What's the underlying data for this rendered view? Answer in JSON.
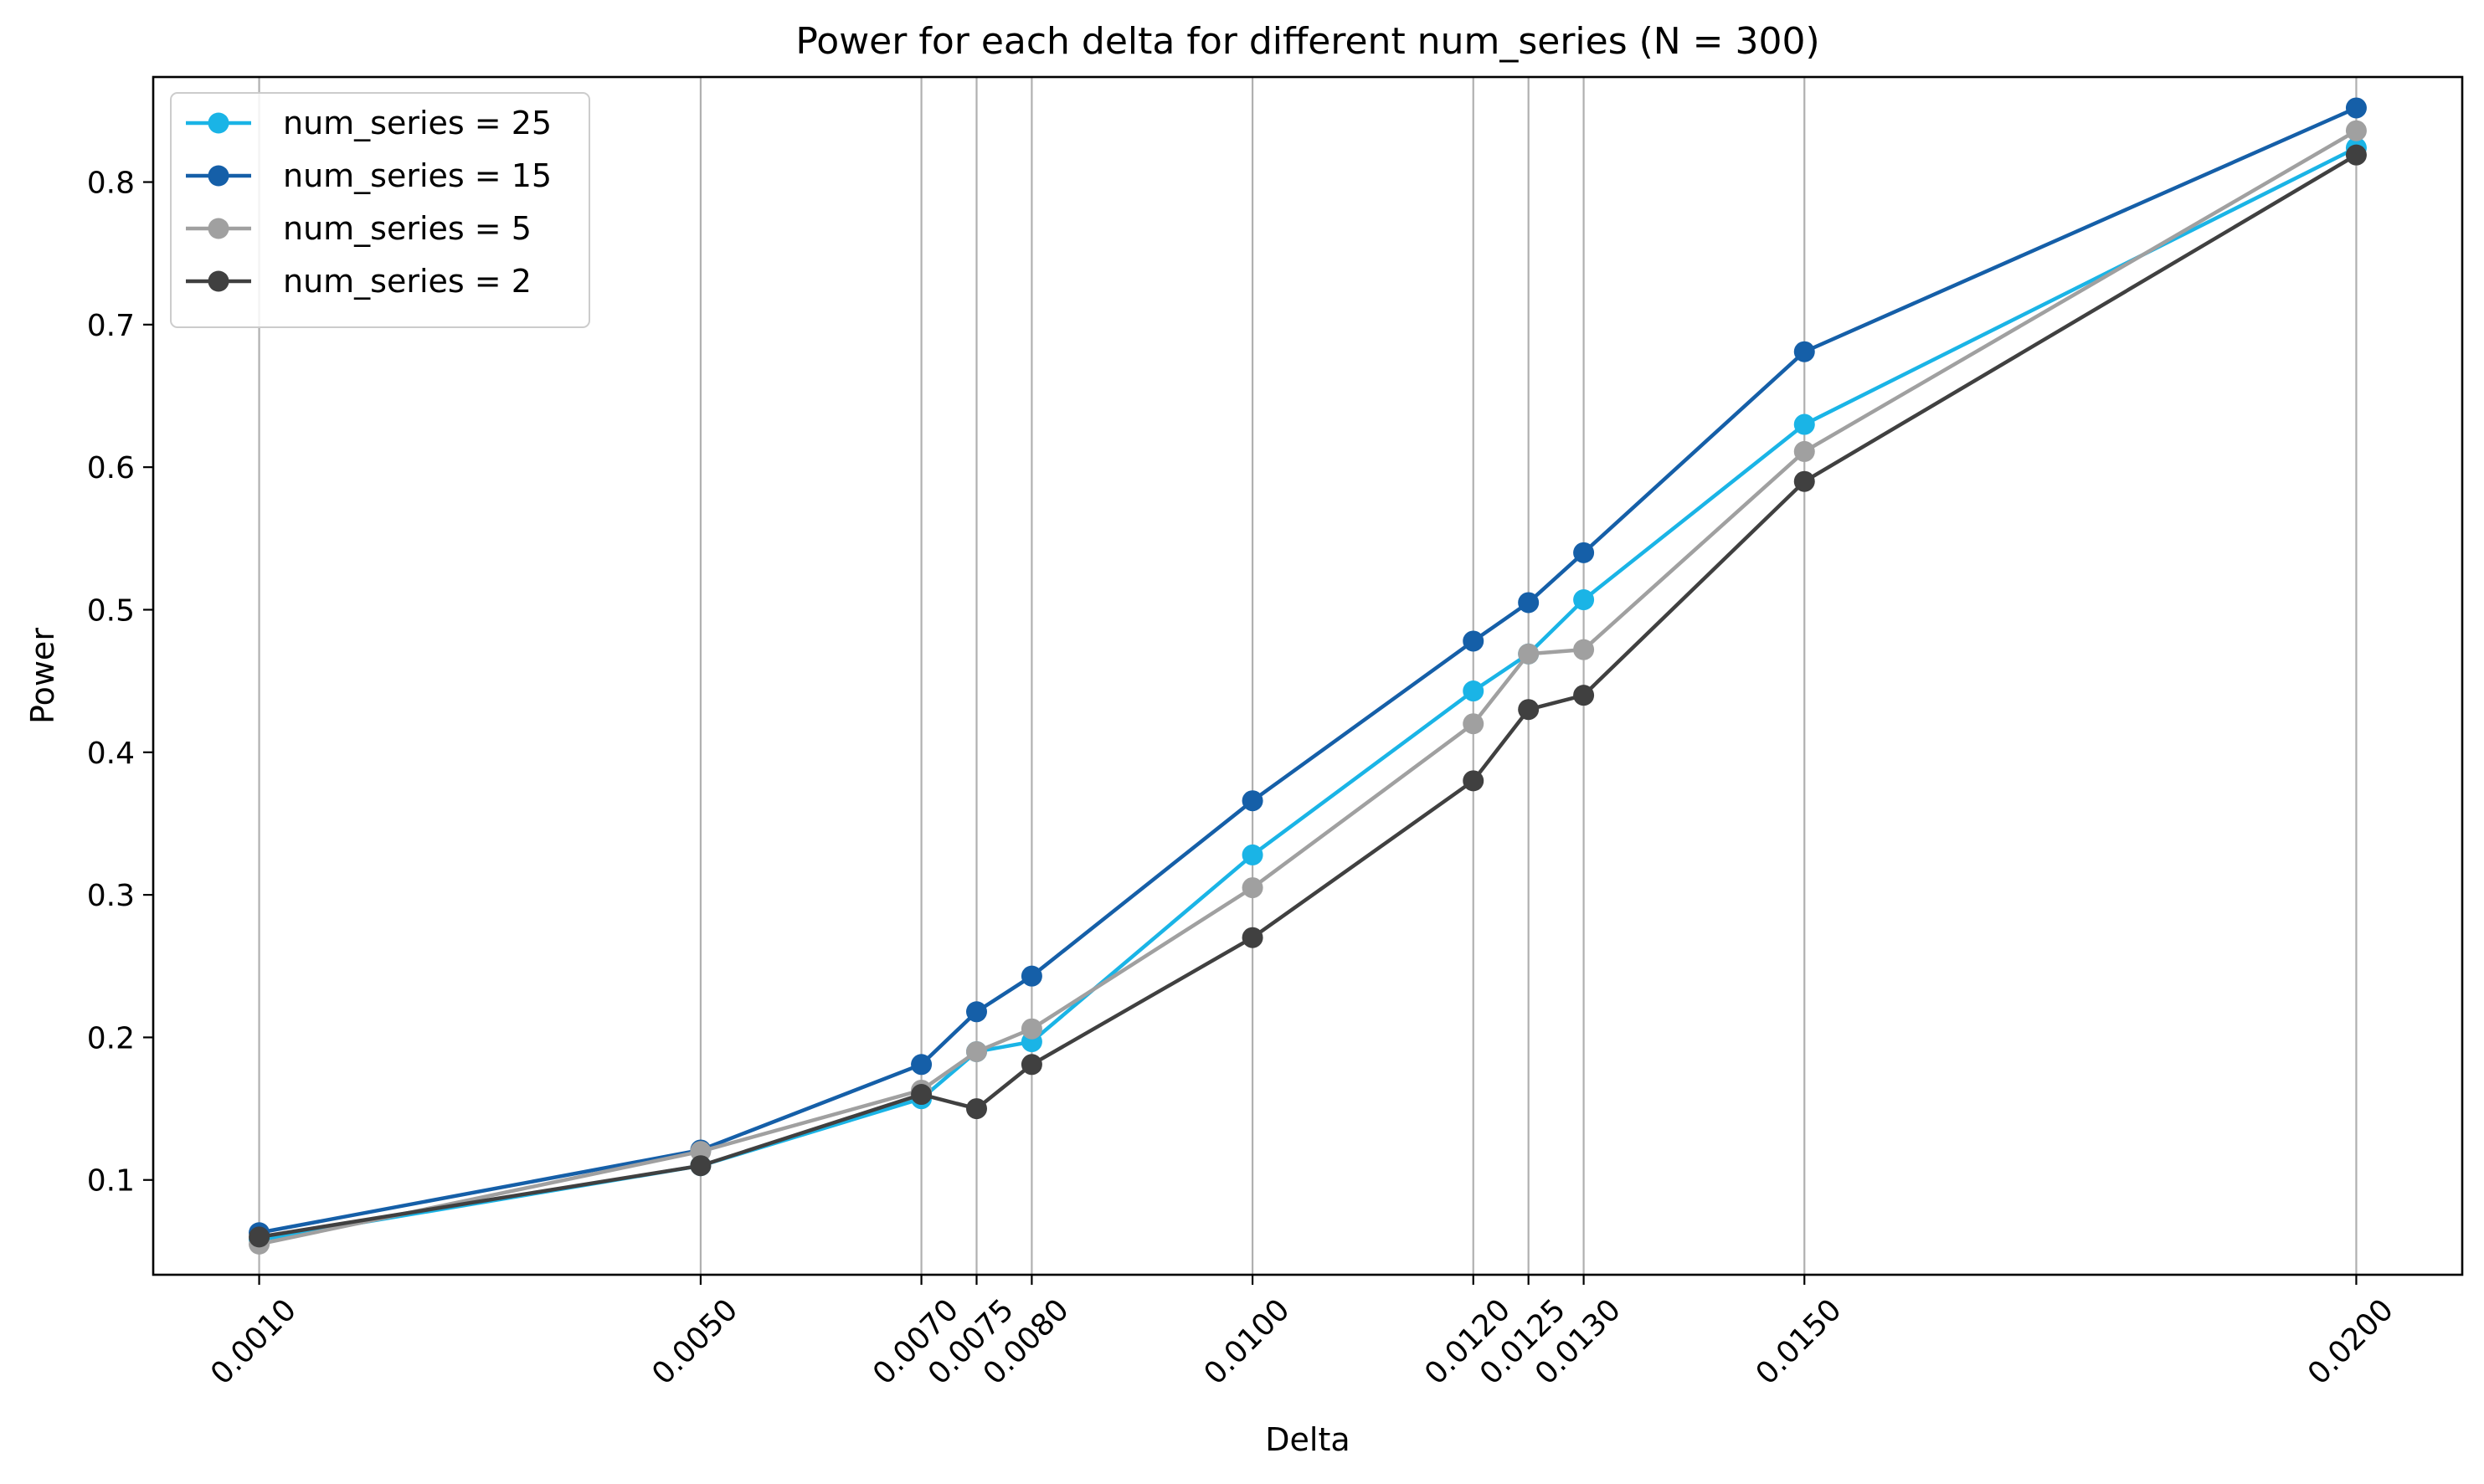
{
  "chart_data": {
    "type": "line",
    "title": "Power for each delta for different num_series (N = 300)",
    "xlabel": "Delta",
    "ylabel": "Power",
    "x": [
      0.001,
      0.005,
      0.007,
      0.0075,
      0.008,
      0.01,
      0.012,
      0.0125,
      0.013,
      0.015,
      0.02
    ],
    "x_tick_labels": [
      "0.0010",
      "0.0050",
      "0.0070",
      "0.0075",
      "0.0080",
      "0.0100",
      "0.0120",
      "0.0125",
      "0.0130",
      "0.0150",
      "0.0200"
    ],
    "y_ticks": [
      0.1,
      0.2,
      0.3,
      0.4,
      0.5,
      0.6,
      0.7,
      0.8
    ],
    "y_tick_labels": [
      "0.1",
      "0.2",
      "0.3",
      "0.4",
      "0.5",
      "0.6",
      "0.7",
      "0.8"
    ],
    "xlim": [
      4e-05,
      0.02096
    ],
    "ylim": [
      0.0335,
      0.8737
    ],
    "grid": "vertical lines at x ticks",
    "legend_position": "upper left",
    "series": [
      {
        "name": "num_series = 25",
        "color": "#1AB4E6",
        "values": [
          0.058,
          0.11,
          0.157,
          0.19,
          0.197,
          0.328,
          0.443,
          0.469,
          0.507,
          0.63,
          0.824
        ]
      },
      {
        "name": "num_series = 15",
        "color": "#155FA8",
        "values": [
          0.063,
          0.121,
          0.181,
          0.218,
          0.243,
          0.366,
          0.478,
          0.505,
          0.54,
          0.681,
          0.852
        ]
      },
      {
        "name": "num_series = 5",
        "color": "#A0A0A0",
        "values": [
          0.055,
          0.12,
          0.163,
          0.19,
          0.206,
          0.305,
          0.42,
          0.469,
          0.472,
          0.611,
          0.836
        ]
      },
      {
        "name": "num_series = 2",
        "color": "#404040",
        "values": [
          0.06,
          0.11,
          0.16,
          0.15,
          0.181,
          0.27,
          0.38,
          0.43,
          0.44,
          0.59,
          0.819
        ]
      }
    ]
  }
}
